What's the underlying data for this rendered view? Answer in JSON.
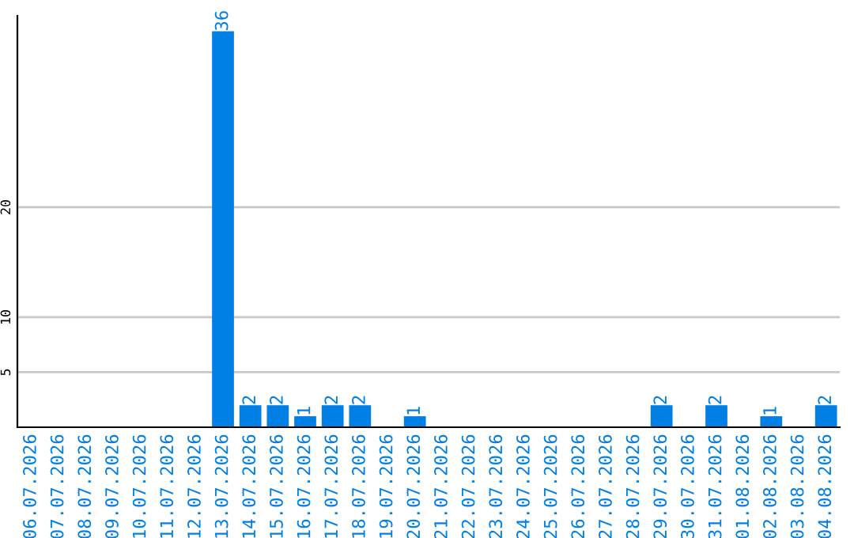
{
  "chart_data": {
    "type": "bar",
    "categories": [
      "06.07.2026",
      "07.07.2026",
      "08.07.2026",
      "09.07.2026",
      "10.07.2026",
      "11.07.2026",
      "12.07.2026",
      "13.07.2026",
      "14.07.2026",
      "15.07.2026",
      "16.07.2026",
      "17.07.2026",
      "18.07.2026",
      "19.07.2026",
      "20.07.2026",
      "21.07.2026",
      "22.07.2026",
      "23.07.2026",
      "24.07.2026",
      "25.07.2026",
      "26.07.2026",
      "27.07.2026",
      "28.07.2026",
      "29.07.2026",
      "30.07.2026",
      "31.07.2026",
      "01.08.2026",
      "02.08.2026",
      "03.08.2026",
      "04.08.2026"
    ],
    "values": [
      0,
      0,
      0,
      0,
      0,
      0,
      0,
      36,
      2,
      2,
      1,
      2,
      2,
      0,
      1,
      0,
      0,
      0,
      0,
      0,
      0,
      0,
      0,
      2,
      0,
      2,
      0,
      1,
      0,
      2
    ],
    "value_labels": [
      null,
      null,
      null,
      null,
      null,
      null,
      null,
      "36",
      "2",
      "2",
      "1",
      "2",
      "2",
      null,
      "1",
      null,
      null,
      null,
      null,
      null,
      null,
      null,
      null,
      "2",
      null,
      "2",
      null,
      "1",
      null,
      "2"
    ],
    "color": "#007fe5",
    "ylim": [
      0,
      37.4
    ],
    "yticks": [
      5,
      10,
      20
    ],
    "grid": "y"
  }
}
